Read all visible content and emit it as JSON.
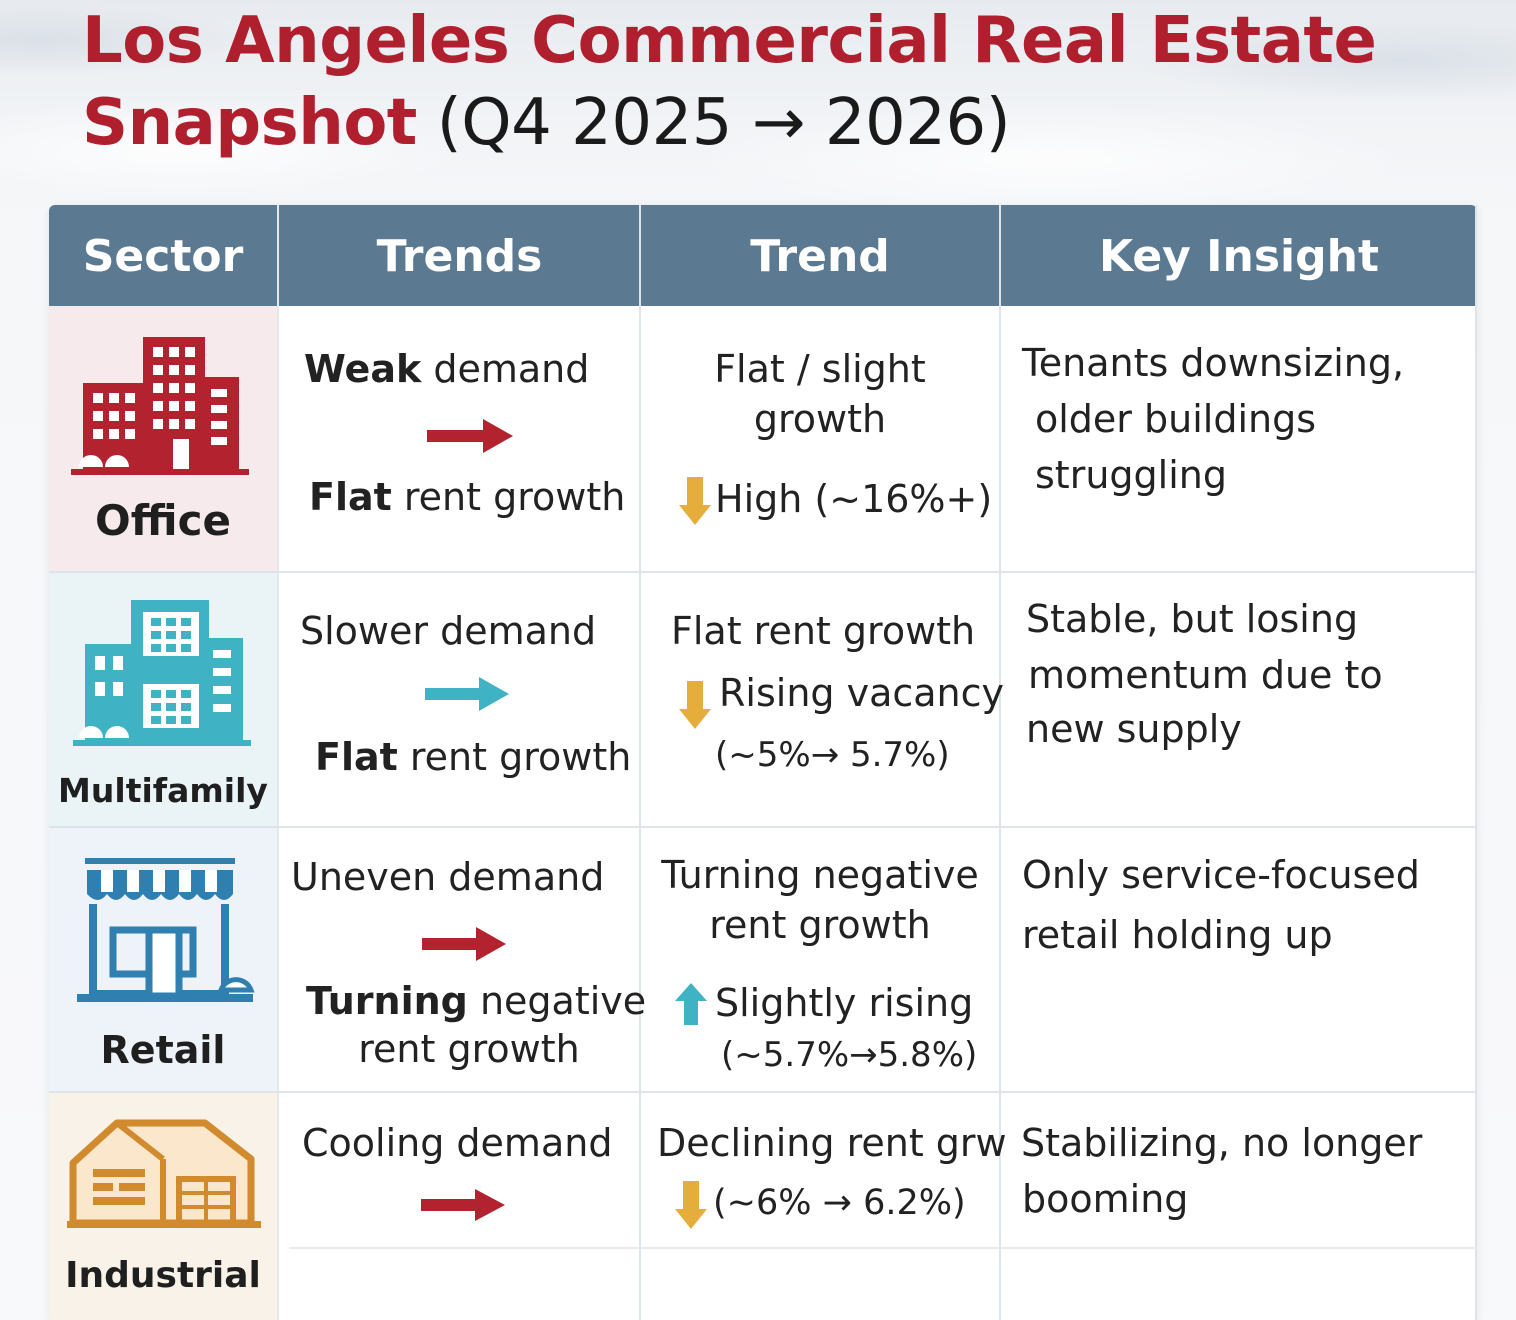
{
  "title": {
    "main": "Los Angeles Commercial Real Estate",
    "line2_bold": "Snapshot",
    "line2_rest": " (Q4 2025 → 2026)"
  },
  "columns": [
    "Sector",
    "Trends",
    "Trend",
    "Key Insight"
  ],
  "colors": {
    "title_red": "#b01f2e",
    "header_blue": "#5b7a92",
    "arrow_red": "#b3232f",
    "arrow_teal": "#3fb2c4",
    "arrow_gold": "#e5ad3c",
    "office": "#b3232f",
    "multifamily": "#3fb2c4",
    "retail": "#2f7fb1",
    "industrial": "#d18a2d"
  },
  "rows": [
    {
      "sector": "Office",
      "icon": "office-building-icon",
      "trends": {
        "top_bold": "Weak",
        "top_rest": " demand",
        "arrow": "right-arrow-red",
        "bottom_bold": "Flat",
        "bottom_rest": " rent growth"
      },
      "trend": {
        "line1": "Flat / slight",
        "line2": "growth",
        "arrow": "down-arrow-gold",
        "line3": "High (~16%+)"
      },
      "insight": [
        "Tenants downsizing,",
        "older buildings",
        "struggling"
      ]
    },
    {
      "sector": "Multifamily",
      "icon": "apartment-building-icon",
      "trends": {
        "top": "Slower demand",
        "arrow": "right-arrow-teal",
        "bottom_bold": "Flat",
        "bottom_rest": " rent growth"
      },
      "trend": {
        "line1": "Flat rent growth",
        "arrow": "down-arrow-gold",
        "line2": "Rising vacancy",
        "line3": "(~5%→ 5.7%)"
      },
      "insight": [
        "Stable, but losing",
        "momentum due to",
        "new supply"
      ]
    },
    {
      "sector": "Retail",
      "icon": "storefront-icon",
      "trends": {
        "top": "Uneven demand",
        "arrow": "right-arrow-red",
        "bottom_bold": "Turning",
        "bottom_rest": " negative",
        "bottom_line2": "rent growth"
      },
      "trend": {
        "line1": "Turning negative",
        "line2": "rent growth",
        "arrow": "up-arrow-teal",
        "line3": "Slightly rising",
        "line4": "(~5.7%→5.8%)"
      },
      "insight": [
        "Only service-focused",
        "retail holding up"
      ]
    },
    {
      "sector": "Industrial",
      "icon": "warehouse-icon",
      "trends": {
        "top": "Cooling demand",
        "arrow": "right-arrow-red"
      },
      "trend": {
        "line1": "Declining rent grw",
        "arrow": "down-arrow-gold",
        "line2": "(~6% → 6.2%)"
      },
      "insight": [
        "Stabilizing, no longer",
        "booming"
      ]
    }
  ]
}
